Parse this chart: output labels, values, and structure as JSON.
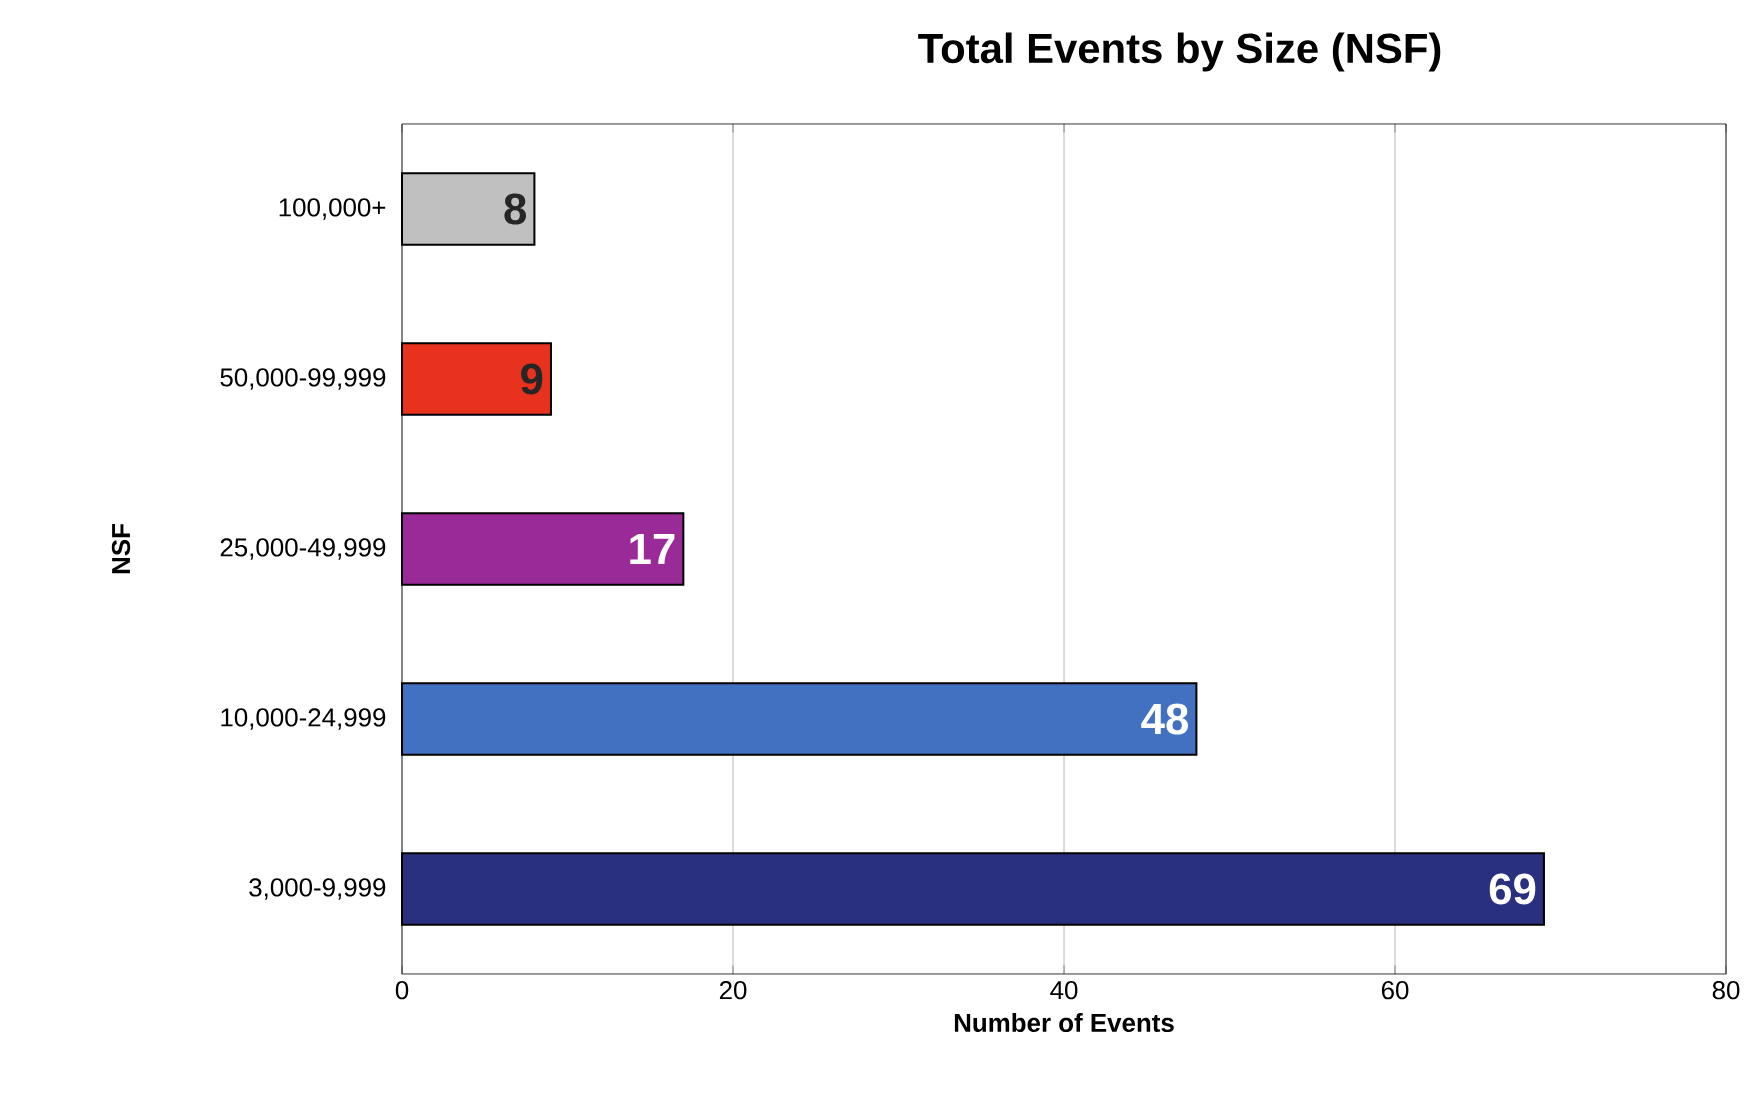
{
  "chart_data": {
    "type": "bar",
    "orientation": "horizontal",
    "title": "Total Events by Size (NSF)",
    "xlabel": "Number of Events",
    "ylabel": "NSF",
    "categories": [
      "100,000+",
      "50,000-99,999",
      "25,000-49,999",
      "10,000-24,999",
      "3,000-9,999"
    ],
    "values": [
      8,
      9,
      17,
      48,
      69
    ],
    "colors": [
      "#c0c0c0",
      "#e8321e",
      "#9a2a98",
      "#4271c2",
      "#29307f"
    ],
    "xlim": [
      0,
      80
    ],
    "xticks": [
      0,
      20,
      40,
      60,
      80
    ],
    "grid": "x",
    "data_labels": true
  }
}
